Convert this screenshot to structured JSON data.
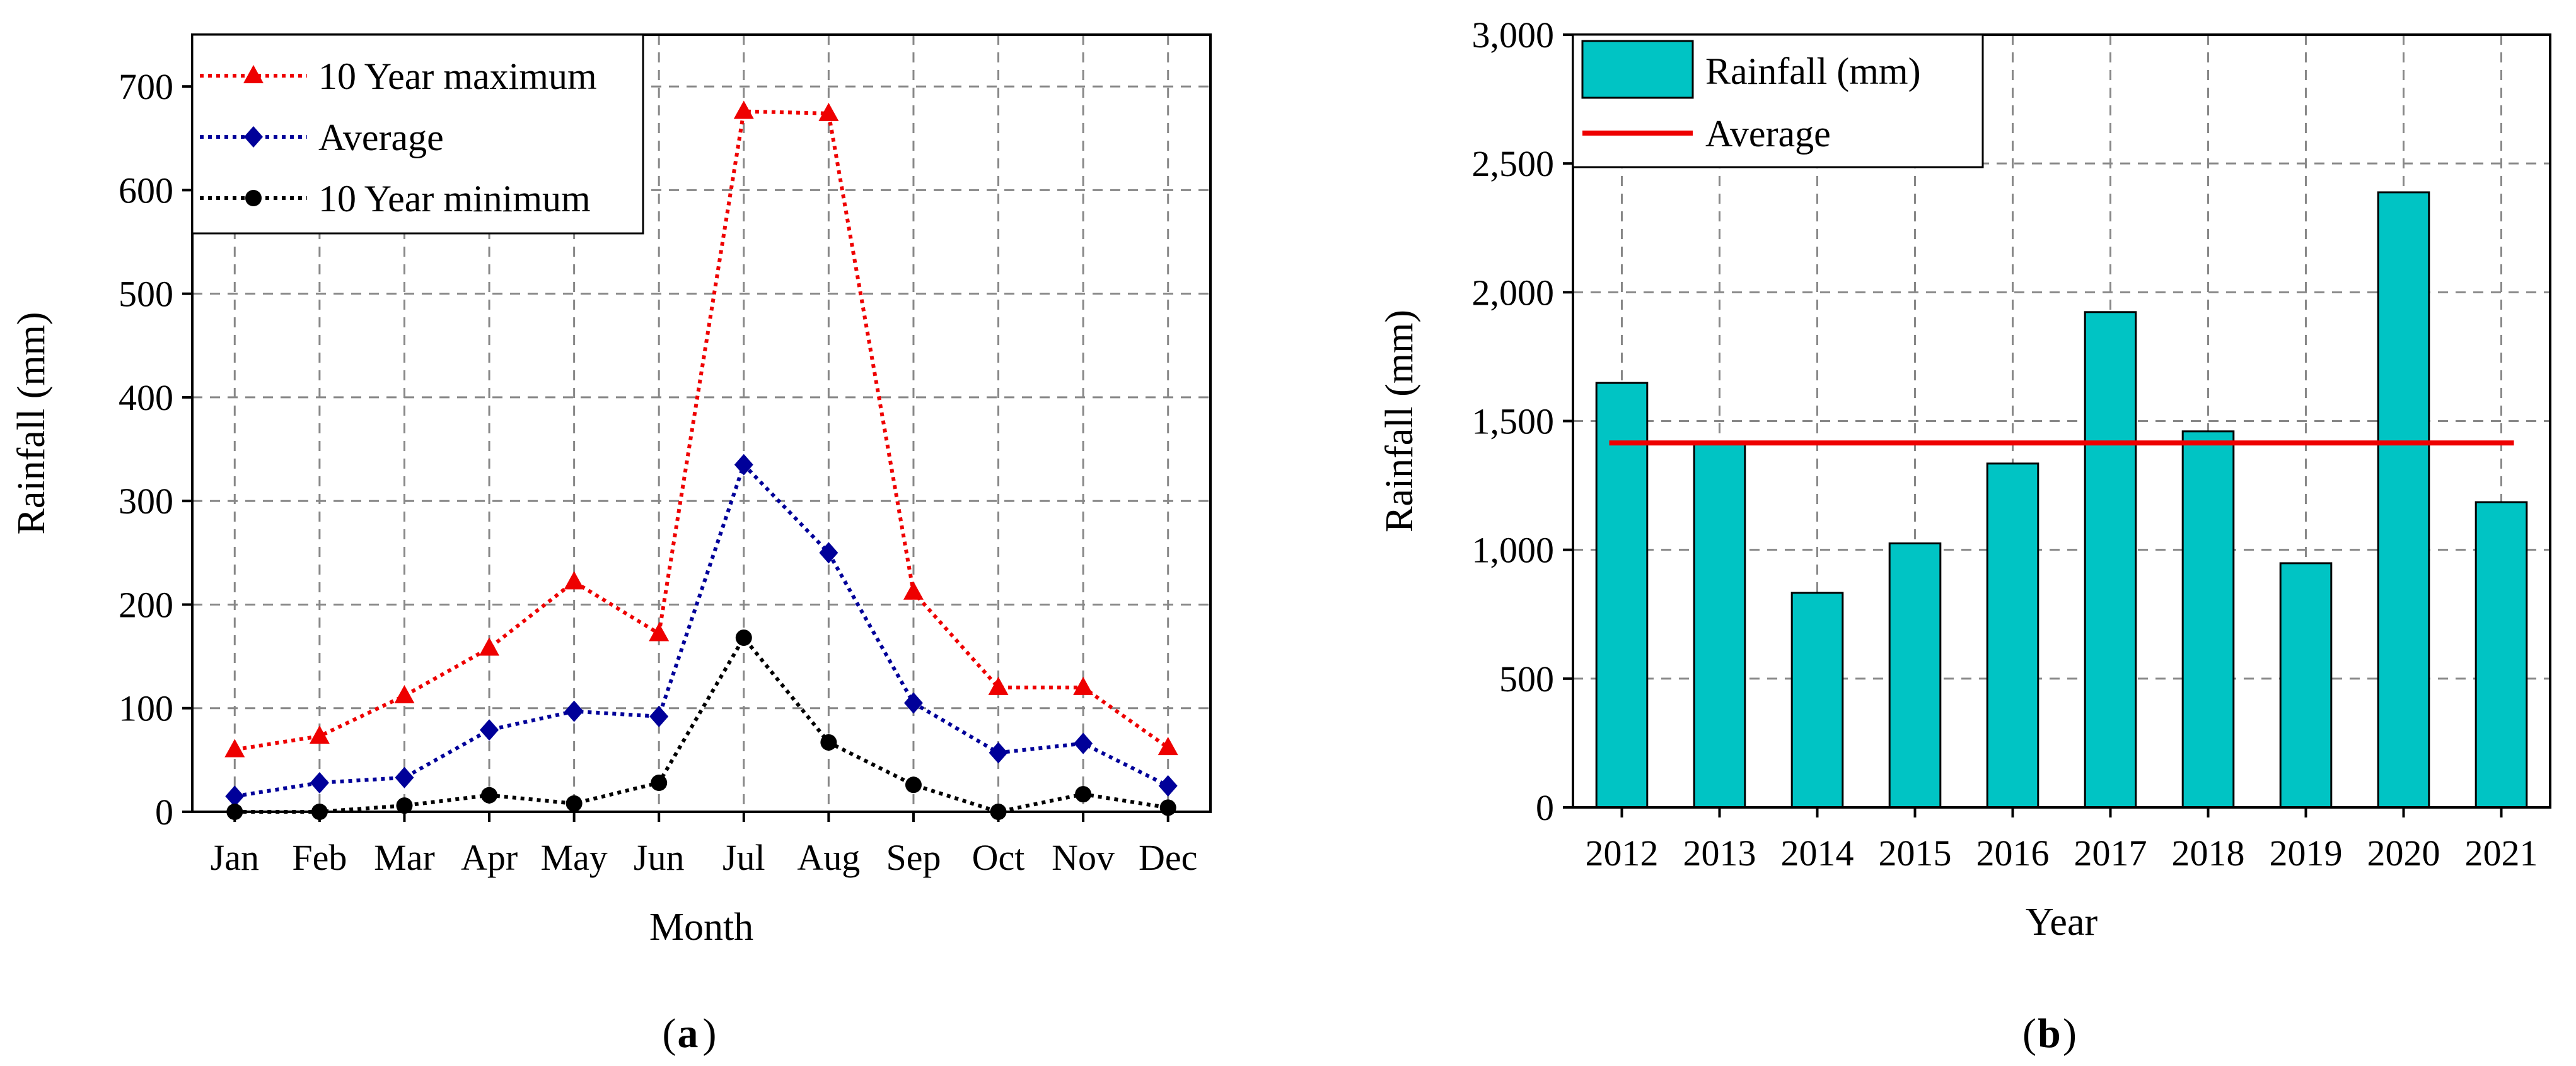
{
  "chart_data": [
    {
      "type": "line",
      "panel_label": "a",
      "xlabel": "Month",
      "ylabel": "Rainfall (mm)",
      "categories": [
        "Jan",
        "Feb",
        "Mar",
        "Apr",
        "May",
        "Jun",
        "Jul",
        "Aug",
        "Sep",
        "Oct",
        "Nov",
        "Dec"
      ],
      "ylim": [
        0,
        750
      ],
      "yticks": [
        0,
        100,
        200,
        300,
        400,
        500,
        600,
        700
      ],
      "grid": true,
      "legend_position": "top-left",
      "series": [
        {
          "name": "10 Year maximum",
          "color": "#ee0000",
          "marker": "triangle",
          "values": [
            60,
            73,
            112,
            158,
            222,
            172,
            676,
            674,
            212,
            120,
            120,
            62
          ]
        },
        {
          "name": "Average",
          "color": "#000099",
          "marker": "diamond",
          "values": [
            15,
            28,
            33,
            79,
            97,
            92,
            335,
            250,
            105,
            57,
            66,
            25
          ]
        },
        {
          "name": "10 Year minimum",
          "color": "#000000",
          "marker": "circle",
          "values": [
            0,
            0,
            6,
            16,
            8,
            28,
            168,
            67,
            26,
            0,
            17,
            4
          ]
        }
      ]
    },
    {
      "type": "bar",
      "panel_label": "b",
      "xlabel": "Year",
      "ylabel": "Rainfall (mm)",
      "categories": [
        "2012",
        "2013",
        "2014",
        "2015",
        "2016",
        "2017",
        "2018",
        "2019",
        "2020",
        "2021"
      ],
      "ylim": [
        0,
        3000
      ],
      "yticks": [
        0,
        500,
        1000,
        1500,
        2000,
        2500,
        3000
      ],
      "ytick_labels": [
        "0",
        "500",
        "1,000",
        "1,500",
        "2,000",
        "2,500",
        "3,000"
      ],
      "grid": true,
      "legend_position": "top-left",
      "series": [
        {
          "name": "Rainfall (mm)",
          "color": "#00c4c4",
          "values": [
            1648,
            1418,
            833,
            1025,
            1335,
            1923,
            1460,
            948,
            2388,
            1185
          ]
        }
      ],
      "reference_line": {
        "name": "Average",
        "color": "#ee0000",
        "value": 1415
      }
    }
  ]
}
